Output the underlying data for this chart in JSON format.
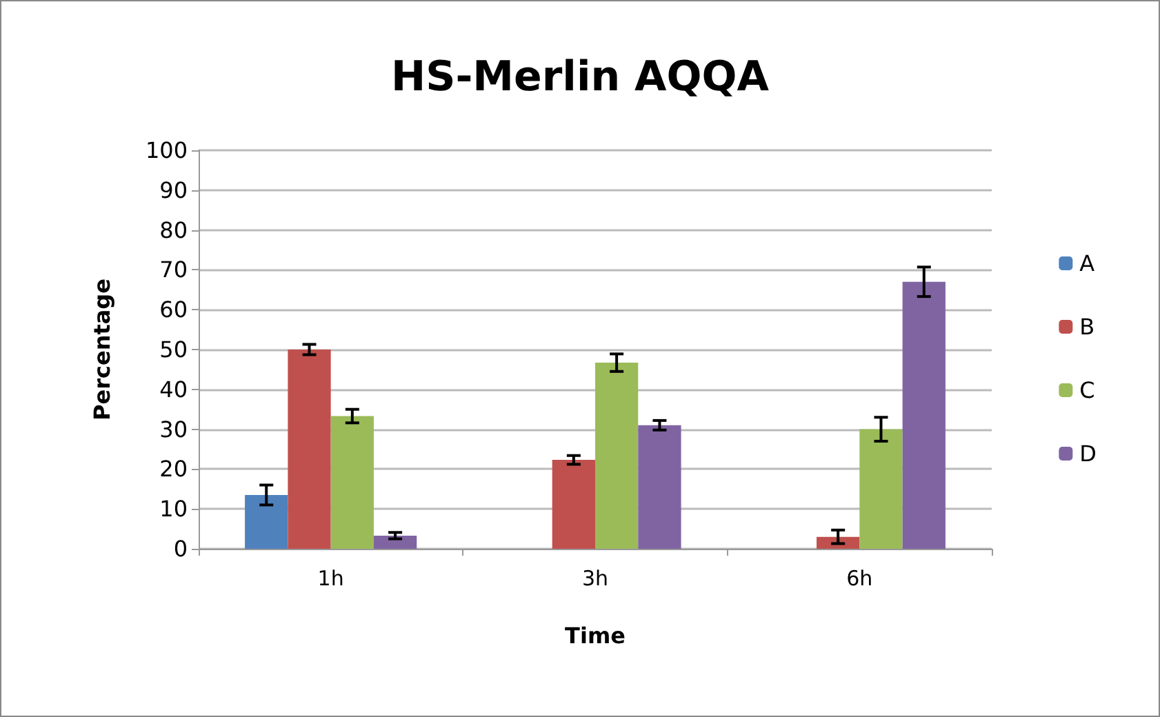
{
  "chart_data": {
    "type": "bar",
    "title": "HS-Merlin AQQA",
    "xlabel": "Time",
    "ylabel": "Percentage",
    "categories": [
      "1h",
      "3h",
      "6h"
    ],
    "series": [
      {
        "name": "A",
        "color": "#4f81bd",
        "values": [
          13.5,
          0,
          0
        ],
        "errors": [
          2.5,
          null,
          null
        ]
      },
      {
        "name": "B",
        "color": "#c0504d",
        "values": [
          50,
          22.3,
          3
        ],
        "errors": [
          1.3,
          1.1,
          1.7
        ]
      },
      {
        "name": "C",
        "color": "#9bbb59",
        "values": [
          33.3,
          46.7,
          30
        ],
        "errors": [
          1.7,
          2.2,
          3
        ]
      },
      {
        "name": "D",
        "color": "#8064a2",
        "values": [
          3.3,
          31,
          67
        ],
        "errors": [
          0.8,
          1.2,
          3.7
        ]
      }
    ],
    "ylim": [
      0,
      100
    ],
    "yticks": [
      0,
      10,
      20,
      30,
      40,
      50,
      60,
      70,
      80,
      90,
      100
    ],
    "grid": "y",
    "legend": "right"
  }
}
